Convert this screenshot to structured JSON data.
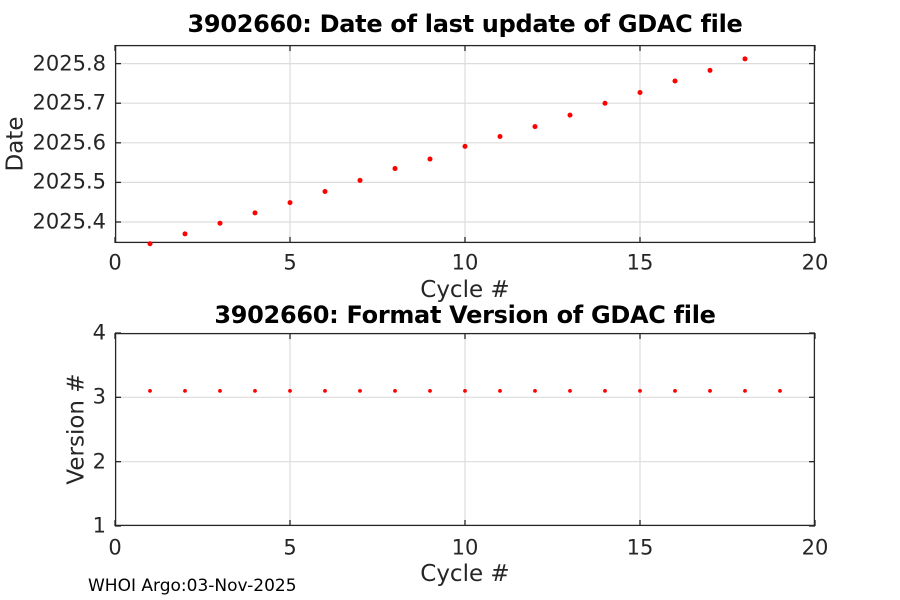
{
  "figure": {
    "footer_text": "WHOI Argo:03-Nov-2025",
    "background_color": "#ffffff"
  },
  "colors": {
    "marker": "#ff0000",
    "axis": "#262626",
    "grid": "#dcdcdc",
    "tick_label": "#262626",
    "title": "#000000"
  },
  "chart_data": [
    {
      "type": "scatter",
      "title": "3902660: Date of last update of GDAC file",
      "xlabel": "Cycle #",
      "ylabel": "Date",
      "xlim": [
        0,
        20
      ],
      "ylim": [
        2025.347,
        2025.847
      ],
      "xtick_values": [
        0,
        5,
        10,
        15,
        20
      ],
      "xtick_labels": [
        "0",
        "5",
        "10",
        "15",
        "20"
      ],
      "ytick_values": [
        2025.4,
        2025.5,
        2025.6,
        2025.7,
        2025.8
      ],
      "ytick_labels": [
        "2025.4",
        "2025.5",
        "2025.6",
        "2025.7",
        "2025.8"
      ],
      "grid": true,
      "legend": "none",
      "marker": "filled-dot",
      "x": [
        1,
        2,
        3,
        4,
        5,
        6,
        7,
        8,
        9,
        10,
        11,
        12,
        13,
        14,
        15,
        16,
        17,
        18
      ],
      "y": [
        2025.345,
        2025.37,
        2025.397,
        2025.423,
        2025.449,
        2025.477,
        2025.505,
        2025.535,
        2025.559,
        2025.591,
        2025.616,
        2025.641,
        2025.67,
        2025.7,
        2025.727,
        2025.756,
        2025.783,
        2025.812
      ]
    },
    {
      "type": "scatter",
      "title": "3902660: Format Version of GDAC file",
      "xlabel": "Cycle #",
      "ylabel": "Version #",
      "xlim": [
        0,
        20
      ],
      "ylim": [
        1,
        4
      ],
      "xtick_values": [
        0,
        5,
        10,
        15,
        20
      ],
      "xtick_labels": [
        "0",
        "5",
        "10",
        "15",
        "20"
      ],
      "ytick_values": [
        1,
        2,
        3,
        4
      ],
      "ytick_labels": [
        "1",
        "2",
        "3",
        "4"
      ],
      "grid": true,
      "legend": "none",
      "marker": "filled-dot",
      "x": [
        1,
        2,
        3,
        4,
        5,
        6,
        7,
        8,
        9,
        10,
        11,
        12,
        13,
        14,
        15,
        16,
        17,
        18,
        19
      ],
      "y": [
        3.1,
        3.1,
        3.1,
        3.1,
        3.1,
        3.1,
        3.1,
        3.1,
        3.1,
        3.1,
        3.1,
        3.1,
        3.1,
        3.1,
        3.1,
        3.1,
        3.1,
        3.1,
        3.1
      ]
    }
  ]
}
